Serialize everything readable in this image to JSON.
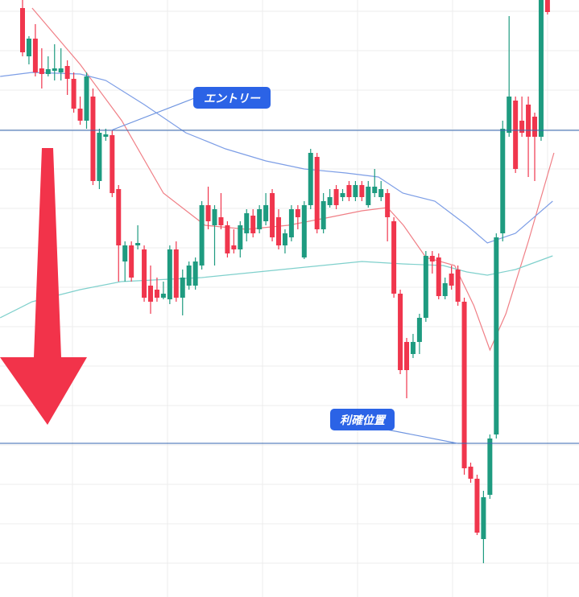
{
  "chart_data": {
    "type": "candlestick",
    "ylim": [
      0,
      742
    ],
    "grid": true,
    "up_color": "#1e9b80",
    "down_color": "#f0364d",
    "open": [
      732,
      672,
      694,
      657,
      650,
      654,
      652,
      660,
      644,
      607,
      592,
      622,
      517,
      572,
      574,
      507,
      417,
      437,
      437,
      432,
      387,
      382,
      372,
      370,
      432,
      372,
      387,
      387,
      412,
      487,
      462,
      472,
      462,
      437,
      432,
      452,
      474,
      457,
      467,
      502,
      472,
      437,
      447,
      482,
      422,
      487,
      547,
      457,
      487,
      507,
      497,
      512,
      497,
      512,
      487,
      502,
      497,
      502,
      467,
      377,
      317,
      302,
      317,
      347,
      424,
      422,
      374,
      402,
      407,
      367,
      162,
      147,
      72,
      127,
      202,
      452,
      577,
      617,
      592,
      612,
      597,
      572,
      742
    ],
    "close": [
      677,
      694,
      652,
      650,
      656,
      657,
      657,
      644,
      607,
      592,
      647,
      517,
      577,
      575,
      502,
      437,
      437,
      397,
      440,
      372,
      367,
      372,
      377,
      432,
      372,
      397,
      412,
      417,
      487,
      467,
      482,
      462,
      427,
      432,
      462,
      477,
      452,
      482,
      487,
      447,
      437,
      452,
      482,
      472,
      487,
      552,
      457,
      492,
      497,
      487,
      502,
      497,
      512,
      497,
      510,
      510,
      507,
      472,
      377,
      282,
      282,
      317,
      347,
      424,
      417,
      374,
      390,
      387,
      367,
      160,
      147,
      80,
      124,
      197,
      447,
      582,
      622,
      532,
      577,
      572,
      572,
      742,
      727
    ],
    "high": [
      742,
      697,
      712,
      682,
      672,
      687,
      682,
      667,
      652,
      622,
      652,
      632,
      582,
      582,
      580,
      512,
      442,
      442,
      462,
      437,
      412,
      397,
      392,
      437,
      442,
      407,
      417,
      422,
      492,
      510,
      487,
      502,
      467,
      457,
      467,
      482,
      482,
      487,
      502,
      507,
      482,
      457,
      487,
      487,
      492,
      557,
      552,
      502,
      507,
      512,
      507,
      517,
      517,
      517,
      517,
      532,
      517,
      507,
      472,
      382,
      322,
      327,
      352,
      430,
      430,
      427,
      397,
      412,
      412,
      372,
      167,
      152,
      132,
      202,
      452,
      592,
      722,
      622,
      622,
      622,
      602,
      742,
      742
    ],
    "low": [
      672,
      662,
      647,
      632,
      647,
      642,
      642,
      624,
      602,
      587,
      582,
      512,
      507,
      567,
      497,
      392,
      392,
      392,
      432,
      367,
      352,
      367,
      370,
      364,
      367,
      350,
      382,
      382,
      407,
      457,
      412,
      457,
      422,
      427,
      422,
      442,
      447,
      452,
      462,
      442,
      432,
      427,
      442,
      457,
      420,
      482,
      452,
      452,
      484,
      482,
      492,
      492,
      492,
      492,
      484,
      497,
      492,
      442,
      372,
      277,
      247,
      297,
      302,
      342,
      402,
      370,
      370,
      382,
      362,
      152,
      142,
      77,
      42,
      122,
      197,
      442,
      572,
      527,
      572,
      522,
      517,
      567,
      724
    ],
    "lines": [
      {
        "color": "#f07f86",
        "x": [
          1.5,
          9,
          15.5,
          22,
          28.5,
          35,
          41.5,
          48,
          53,
          57,
          59.5,
          63,
          67.5,
          70.5,
          73,
          75.5,
          79,
          83
        ],
        "values": [
          732,
          662,
          592,
          502,
          462,
          457,
          462,
          472,
          480,
          484,
          462,
          422,
          412,
          362,
          307,
          352,
          442,
          552
        ]
      },
      {
        "color": "#7d9ee6",
        "x": [
          -3.5,
          1.5,
          9,
          13,
          19,
          25.5,
          31.7,
          38,
          44,
          50.5,
          55.6,
          59.4,
          64.4,
          69.4,
          72.6,
          77,
          82.8
        ],
        "values": [
          647,
          652,
          650,
          642,
          612,
          577,
          557,
          542,
          532,
          527,
          522,
          502,
          492,
          462,
          440,
          452,
          492
        ]
      },
      {
        "color": "#7fd0cc",
        "x": [
          -3.5,
          1.5,
          9,
          15.4,
          28,
          40.5,
          53,
          59.4,
          65.7,
          69.4,
          72.6,
          77,
          82.8
        ],
        "values": [
          347,
          367,
          382,
          392,
          397,
          407,
          417,
          414,
          412,
          404,
          400,
          407,
          424
        ]
      }
    ],
    "levels": [
      {
        "value": 580,
        "color": "#3566b0",
        "label": "エントリー"
      },
      {
        "value": 191,
        "color": "#3566b0",
        "label": "利確位置"
      }
    ]
  }
}
